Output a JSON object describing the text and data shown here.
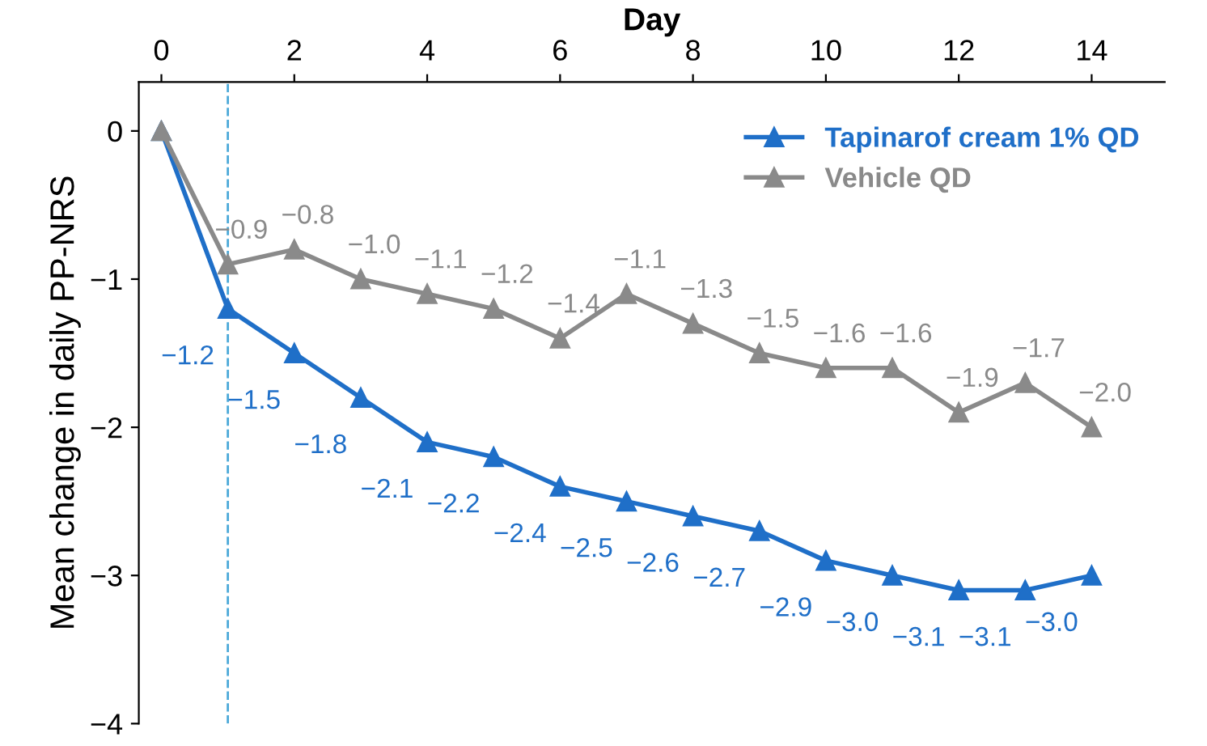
{
  "chart_data": {
    "type": "line",
    "xlabel": "Day",
    "ylabel": "Mean change in daily PP-NRS",
    "x": [
      0,
      1,
      2,
      3,
      4,
      5,
      6,
      7,
      8,
      9,
      10,
      11,
      12,
      13,
      14
    ],
    "series": [
      {
        "name": "Tapinarof cream 1% QD",
        "color": "#1f6fc8",
        "values": [
          0,
          -1.2,
          -1.5,
          -1.8,
          -2.1,
          -2.2,
          -2.4,
          -2.5,
          -2.6,
          -2.7,
          -2.9,
          -3.0,
          -3.1,
          -3.1,
          -3.0
        ],
        "value_labels": [
          null,
          "−1.2",
          "−1.5",
          "−1.8",
          "−2.1",
          "−2.2",
          "−2.4",
          "−2.5",
          "−2.6",
          "−2.7",
          "−2.9",
          "−3.0",
          "−3.1",
          "−3.1",
          "−3.0"
        ]
      },
      {
        "name": "Vehicle QD",
        "color": "#8a8a8a",
        "values": [
          0,
          -0.9,
          -0.8,
          -1.0,
          -1.1,
          -1.2,
          -1.4,
          -1.1,
          -1.3,
          -1.5,
          -1.6,
          -1.6,
          -1.9,
          -1.7,
          -2.0
        ],
        "value_labels": [
          null,
          "−0.9",
          "−0.8",
          "−1.0",
          "−1.1",
          "−1.2",
          "−1.4",
          "−1.1",
          "−1.3",
          "−1.5",
          "−1.6",
          "−1.6",
          "−1.9",
          "−1.7",
          "−2.0"
        ]
      }
    ],
    "xlim": [
      -0.34,
      15.1
    ],
    "xticks": [
      0,
      2,
      4,
      6,
      8,
      10,
      12,
      14
    ],
    "ylim": [
      -4,
      0.33
    ],
    "yticks": [
      {
        "value": 0,
        "label": "0"
      },
      {
        "value": -1,
        "label": "−1"
      },
      {
        "value": -2,
        "label": "−2"
      },
      {
        "value": -3,
        "label": "−3"
      },
      {
        "value": -4,
        "label": "−4"
      }
    ],
    "ref_lines": [
      {
        "axis": "x",
        "value": 1,
        "label": null,
        "color": "#4aa8d8",
        "line_style": "dashed"
      }
    ],
    "marker": "triangle",
    "line_style": "solid",
    "grid": false,
    "legend": "top right"
  }
}
